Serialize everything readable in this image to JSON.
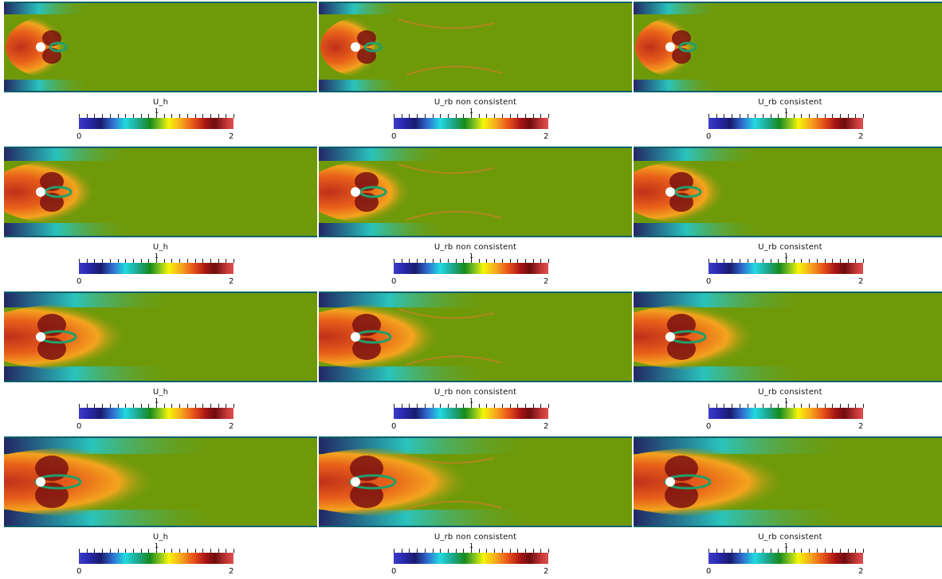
{
  "colorbar": {
    "min": "0",
    "max": "2",
    "mid": "1"
  },
  "rows": [
    {
      "panels": [
        {
          "caption": "U_h"
        },
        {
          "caption": "U_rb non consistent"
        },
        {
          "caption": "U_rb consistent"
        }
      ]
    },
    {
      "panels": [
        {
          "caption": "U_h"
        },
        {
          "caption": "U_rb non consistent"
        },
        {
          "caption": "U_rb consistent"
        }
      ]
    },
    {
      "panels": [
        {
          "caption": "U_h"
        },
        {
          "caption": "U_rb non consistent"
        },
        {
          "caption": "U_rb consistent"
        }
      ]
    },
    {
      "panels": [
        {
          "caption": "U_h"
        },
        {
          "caption": "U_rb non consistent"
        },
        {
          "caption": "U_rb consistent"
        }
      ]
    }
  ],
  "colors": {
    "background_field": "#6e9a0a",
    "wall": "#0e5f6a"
  }
}
